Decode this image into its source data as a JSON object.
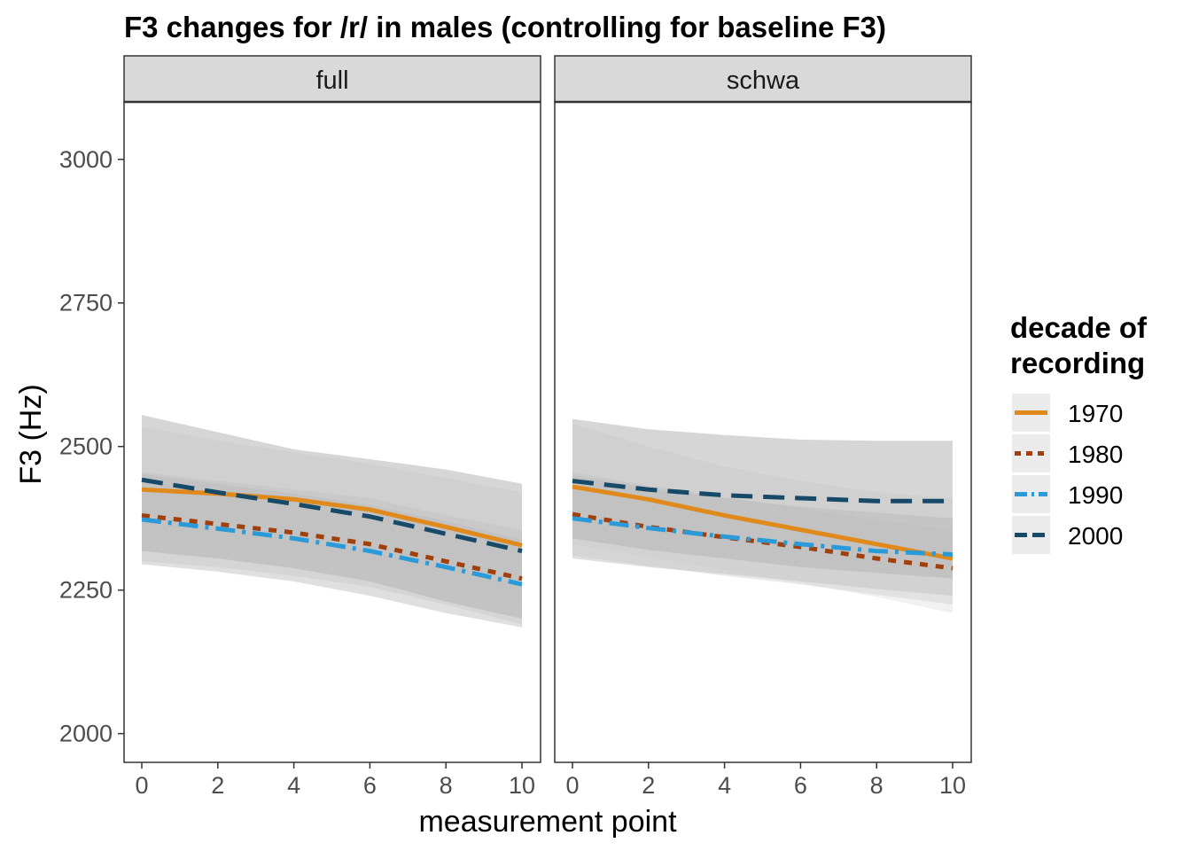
{
  "chart_data": {
    "type": "line",
    "title": "F3 changes for /r/ in males (controlling for baseline F3)",
    "xlabel": "measurement point",
    "ylabel": "F3 (Hz)",
    "xlim": [
      0,
      10
    ],
    "ylim": [
      1950,
      3100
    ],
    "x_ticks": [
      0,
      2,
      4,
      6,
      8,
      10
    ],
    "y_ticks": [
      2000,
      2250,
      2500,
      2750,
      3000
    ],
    "grid": false,
    "legend": {
      "title_lines": [
        "decade of",
        "recording"
      ],
      "position": "right",
      "entries": [
        {
          "label": "1970",
          "color": "#e08a1e",
          "dash": "solid"
        },
        {
          "label": "1980",
          "color": "#a0400c",
          "dash": "dotted"
        },
        {
          "label": "1990",
          "color": "#2a9ad8",
          "dash": "dashdot"
        },
        {
          "label": "2000",
          "color": "#174a68",
          "dash": "dashed"
        }
      ]
    },
    "panels": [
      {
        "label": "full",
        "x": [
          0,
          2,
          4,
          6,
          8,
          10
        ],
        "series": [
          {
            "name": "1970",
            "values": [
              2425,
              2418,
              2408,
              2390,
              2360,
              2328
            ],
            "lower": [
              2335,
              2328,
              2318,
              2298,
              2262,
              2222
            ],
            "upper": [
              2535,
              2510,
              2490,
              2470,
              2445,
              2420
            ]
          },
          {
            "name": "1980",
            "values": [
              2380,
              2365,
              2350,
              2330,
              2300,
              2270
            ],
            "lower": [
              2300,
              2290,
              2275,
              2255,
              2225,
              2190
            ],
            "upper": [
              2455,
              2440,
              2425,
              2410,
              2380,
              2355
            ]
          },
          {
            "name": "1990",
            "values": [
              2373,
              2357,
              2340,
              2318,
              2290,
              2260
            ],
            "lower": [
              2295,
              2282,
              2265,
              2240,
              2210,
              2185
            ],
            "upper": [
              2452,
              2435,
              2418,
              2398,
              2370,
              2338
            ]
          },
          {
            "name": "2000",
            "values": [
              2442,
              2420,
              2400,
              2378,
              2348,
              2318
            ],
            "lower": [
              2318,
              2305,
              2288,
              2265,
              2230,
              2200
            ],
            "upper": [
              2555,
              2525,
              2495,
              2478,
              2460,
              2435
            ]
          }
        ]
      },
      {
        "label": "schwa",
        "x": [
          0,
          2,
          4,
          6,
          8,
          10
        ],
        "series": [
          {
            "name": "1970",
            "values": [
              2430,
              2408,
              2380,
              2355,
              2330,
              2305
            ],
            "lower": [
              2330,
              2308,
              2285,
              2262,
              2238,
              2210
            ],
            "upper": [
              2540,
              2500,
              2465,
              2440,
              2420,
              2410
            ]
          },
          {
            "name": "1980",
            "values": [
              2382,
              2360,
              2342,
              2325,
              2305,
              2288
            ],
            "lower": [
              2310,
              2292,
              2275,
              2260,
              2242,
              2225
            ],
            "upper": [
              2455,
              2432,
              2412,
              2392,
              2372,
              2355
            ]
          },
          {
            "name": "1990",
            "values": [
              2375,
              2358,
              2343,
              2330,
              2318,
              2312
            ],
            "lower": [
              2305,
              2290,
              2278,
              2265,
              2252,
              2240
            ],
            "upper": [
              2450,
              2428,
              2410,
              2395,
              2385,
              2375
            ]
          },
          {
            "name": "2000",
            "values": [
              2440,
              2425,
              2415,
              2410,
              2405,
              2405
            ],
            "lower": [
              2340,
              2320,
              2305,
              2290,
              2280,
              2270
            ],
            "upper": [
              2548,
              2530,
              2520,
              2512,
              2510,
              2510
            ]
          }
        ]
      }
    ]
  }
}
